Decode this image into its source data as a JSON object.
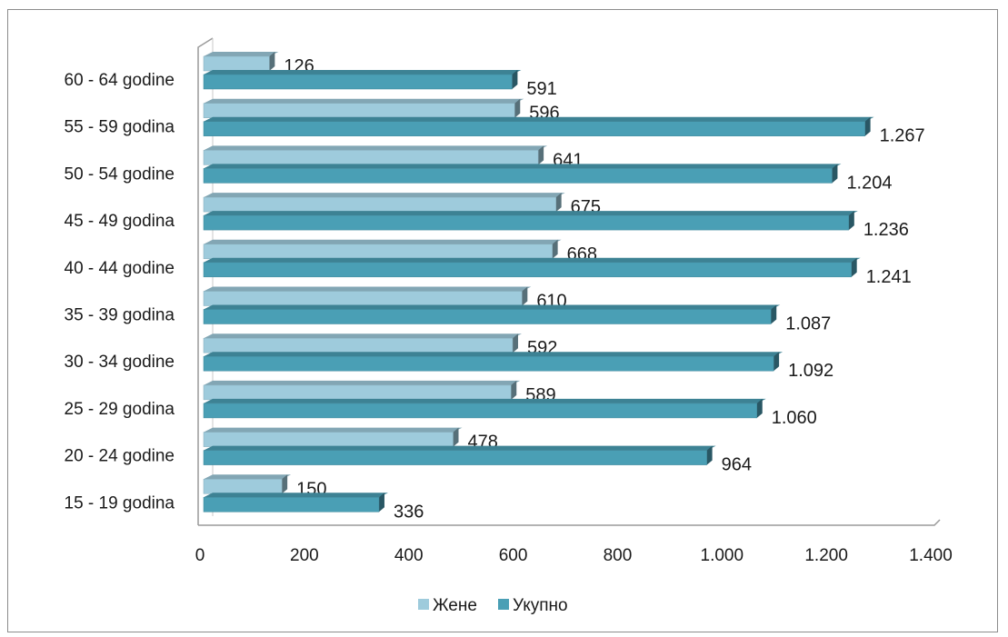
{
  "chart_data": {
    "type": "bar",
    "orientation": "horizontal",
    "categories": [
      "15 - 19 godina",
      "20 - 24 godine",
      "25 - 29 godina",
      "30 - 34 godine",
      "35 - 39 godina",
      "40 - 44 godine",
      "45 - 49 godina",
      "50 - 54 godine",
      "55 - 59 godina",
      "60 - 64 godine"
    ],
    "series": [
      {
        "name": "Жене",
        "values": [
          150,
          478,
          589,
          592,
          610,
          668,
          675,
          641,
          596,
          126
        ],
        "labels": [
          "150",
          "478",
          "589",
          "592",
          "610",
          "668",
          "675",
          "641",
          "596",
          "126"
        ],
        "color": "#9ecbdc"
      },
      {
        "name": "Укупно",
        "values": [
          336,
          964,
          1060,
          1092,
          1087,
          1241,
          1236,
          1204,
          1267,
          591
        ],
        "labels": [
          "336",
          "964",
          "1.060",
          "1.092",
          "1.087",
          "1.241",
          "1.236",
          "1.204",
          "1.267",
          "591"
        ],
        "color": "#4a9fb5"
      }
    ],
    "xlim": [
      0,
      1400
    ],
    "xticks": [
      0,
      200,
      400,
      600,
      800,
      1000,
      1200,
      1400
    ],
    "xtick_labels": [
      "0",
      "200",
      "400",
      "600",
      "800",
      "1.000",
      "1.200",
      "1.400"
    ],
    "legend": "bottom",
    "grid": false,
    "style": "3d"
  }
}
